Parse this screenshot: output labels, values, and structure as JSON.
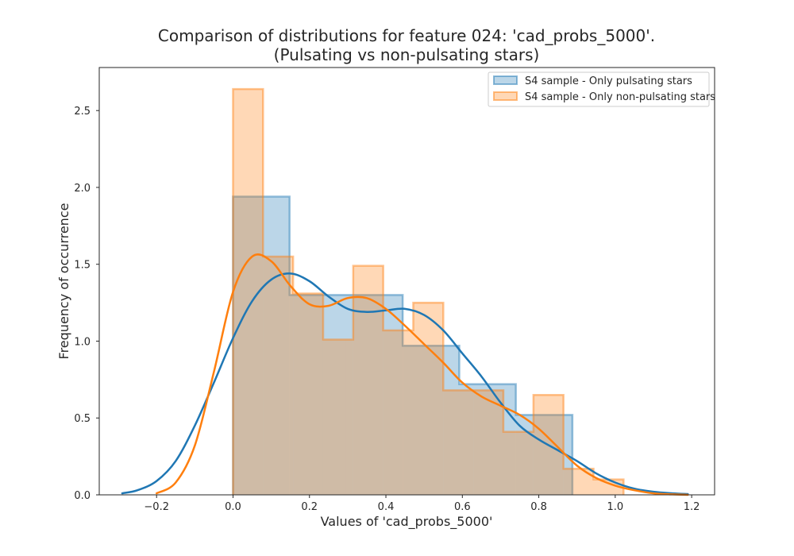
{
  "chart_data": {
    "type": "histogram+kde",
    "title_line1": "Comparison of distributions for feature 024: 'cad_probs_5000'.",
    "title_line2": "(Pulsating vs non-pulsating stars)",
    "xlabel": "Values of 'cad_probs_5000'",
    "ylabel": "Frequency of occurrence",
    "xlim": [
      -0.35,
      1.26
    ],
    "ylim": [
      0,
      2.78
    ],
    "xticks": [
      -0.2,
      0.0,
      0.2,
      0.4,
      0.6,
      0.8,
      1.0,
      1.2
    ],
    "xtick_labels": [
      "−0.2",
      "0.0",
      "0.2",
      "0.4",
      "0.6",
      "0.8",
      "1.0",
      "1.2"
    ],
    "yticks": [
      0.0,
      0.5,
      1.0,
      1.5,
      2.0,
      2.5
    ],
    "ytick_labels": [
      "0.0",
      "0.5",
      "1.0",
      "1.5",
      "2.0",
      "2.5"
    ],
    "grid": false,
    "legend_position": "top-right",
    "series": [
      {
        "name": "S4 sample - Only pulsating stars",
        "color": "#1f77b4",
        "bin_edges": [
          0.0,
          0.148,
          0.296,
          0.444,
          0.592,
          0.74,
          0.888
        ],
        "heights": [
          1.94,
          1.3,
          1.3,
          0.97,
          0.72,
          0.52
        ],
        "kde": {
          "x": [
            -0.29,
            -0.25,
            -0.2,
            -0.15,
            -0.1,
            -0.05,
            0.0,
            0.05,
            0.1,
            0.15,
            0.2,
            0.25,
            0.3,
            0.35,
            0.4,
            0.45,
            0.5,
            0.55,
            0.6,
            0.65,
            0.7,
            0.75,
            0.8,
            0.85,
            0.9,
            0.95,
            1.0,
            1.05,
            1.1,
            1.15,
            1.19
          ],
          "y": [
            0.01,
            0.03,
            0.09,
            0.22,
            0.45,
            0.73,
            1.02,
            1.26,
            1.4,
            1.44,
            1.39,
            1.29,
            1.21,
            1.19,
            1.2,
            1.21,
            1.17,
            1.07,
            0.92,
            0.77,
            0.6,
            0.45,
            0.36,
            0.29,
            0.22,
            0.14,
            0.08,
            0.04,
            0.02,
            0.01,
            0.005
          ]
        }
      },
      {
        "name": "S4 sample - Only non-pulsating stars",
        "color": "#ff7f0e",
        "bin_edges": [
          0.0,
          0.0786,
          0.1572,
          0.2358,
          0.3144,
          0.393,
          0.4716,
          0.5502,
          0.6288,
          0.7074,
          0.786,
          0.8646,
          0.9432,
          1.0218
        ],
        "heights": [
          2.64,
          1.55,
          1.31,
          1.01,
          1.49,
          1.07,
          1.25,
          0.68,
          0.68,
          0.41,
          0.65,
          0.17,
          0.1
        ],
        "kde": {
          "x": [
            -0.2,
            -0.15,
            -0.1,
            -0.05,
            0.0,
            0.05,
            0.1,
            0.15,
            0.2,
            0.25,
            0.3,
            0.35,
            0.4,
            0.45,
            0.5,
            0.55,
            0.6,
            0.65,
            0.7,
            0.75,
            0.8,
            0.85,
            0.9,
            0.95,
            1.0,
            1.05,
            1.1,
            1.15,
            1.19
          ],
          "y": [
            0.01,
            0.08,
            0.32,
            0.8,
            1.32,
            1.55,
            1.52,
            1.36,
            1.24,
            1.23,
            1.28,
            1.28,
            1.21,
            1.1,
            0.98,
            0.86,
            0.73,
            0.64,
            0.58,
            0.52,
            0.43,
            0.31,
            0.19,
            0.11,
            0.06,
            0.03,
            0.01,
            0.003,
            0.0
          ]
        }
      }
    ]
  }
}
